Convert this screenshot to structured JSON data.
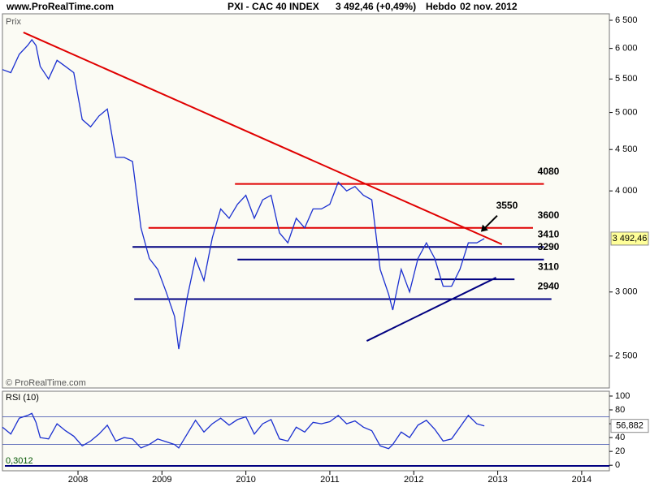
{
  "header": {
    "site": "www.ProRealTime.com",
    "instrument": "PXI - CAC 40 INDEX",
    "quote": "3 492,46 (+0,49%)",
    "period": "Hebdo",
    "date": "02 nov. 2012"
  },
  "chart_data": [
    {
      "type": "line",
      "y_label": "Prix",
      "credit": "© ProRealTime.com",
      "log_scale": true,
      "xlim": [
        2007.1,
        2014.33
      ],
      "xticks": [
        2008,
        2009,
        2010,
        2011,
        2012,
        2013,
        2014
      ],
      "ylim": [
        2283,
        6621
      ],
      "yticks": [
        {
          "value": 2500,
          "label": "2 500"
        },
        {
          "value": 3000,
          "label": "3 000"
        },
        {
          "value": 4000,
          "label": "4 000"
        },
        {
          "value": 4500,
          "label": "4 500"
        },
        {
          "value": 5000,
          "label": "5 000"
        },
        {
          "value": 5500,
          "label": "5 500"
        },
        {
          "value": 6000,
          "label": "6 000"
        },
        {
          "value": 6500,
          "label": "6 500"
        }
      ],
      "x": [
        2007.1,
        2007.2,
        2007.3,
        2007.4,
        2007.45,
        2007.5,
        2007.55,
        2007.65,
        2007.75,
        2007.85,
        2007.95,
        2008.05,
        2008.15,
        2008.25,
        2008.35,
        2008.45,
        2008.55,
        2008.65,
        2008.75,
        2008.85,
        2008.95,
        2009.05,
        2009.15,
        2009.2,
        2009.3,
        2009.4,
        2009.5,
        2009.6,
        2009.7,
        2009.8,
        2009.9,
        2010.0,
        2010.1,
        2010.2,
        2010.3,
        2010.4,
        2010.5,
        2010.6,
        2010.7,
        2010.8,
        2010.9,
        2011.0,
        2011.1,
        2011.2,
        2011.3,
        2011.4,
        2011.5,
        2011.6,
        2011.7,
        2011.75,
        2011.85,
        2011.95,
        2012.05,
        2012.15,
        2012.25,
        2012.35,
        2012.45,
        2012.55,
        2012.65,
        2012.75,
        2012.84
      ],
      "series": [
        {
          "name": "CAC 40",
          "color": "#1a2fd0",
          "values": [
            5650,
            5600,
            5900,
            6050,
            6150,
            6050,
            5700,
            5500,
            5800,
            5700,
            5600,
            4900,
            4800,
            4950,
            5050,
            4400,
            4400,
            4350,
            3600,
            3300,
            3200,
            3000,
            2800,
            2550,
            2950,
            3300,
            3100,
            3500,
            3800,
            3700,
            3850,
            3950,
            3700,
            3900,
            3950,
            3550,
            3450,
            3700,
            3600,
            3800,
            3800,
            3850,
            4100,
            4000,
            4050,
            3950,
            3900,
            3200,
            2980,
            2850,
            3200,
            3000,
            3300,
            3450,
            3300,
            3050,
            3050,
            3200,
            3450,
            3450,
            3492.46
          ]
        }
      ],
      "last_label": "3 492,46",
      "levels": [
        {
          "value": 4080,
          "color": "#e00000",
          "x": [
            2009.87,
            2013.55
          ]
        },
        {
          "value": 3600,
          "color": "#e00000",
          "x": [
            2008.84,
            2013.42
          ]
        },
        {
          "value": 3410,
          "color": "#000080",
          "x": [
            2008.65,
            2013.55
          ]
        },
        {
          "value": 3290,
          "color": "#000080",
          "x": [
            2009.9,
            2013.55
          ]
        },
        {
          "value": 3110,
          "color": "#000080",
          "x": [
            2012.25,
            2013.2
          ]
        },
        {
          "value": 2940,
          "color": "#000080",
          "x": [
            2008.67,
            2013.64
          ]
        }
      ],
      "trendlines": [
        {
          "color": "#e00000",
          "x": [
            2007.35,
            2013.05
          ],
          "y": [
            6279,
            3436
          ]
        },
        {
          "color": "#000080",
          "x": [
            2011.44,
            2012.98
          ],
          "y": [
            2610,
            3125
          ]
        }
      ],
      "annotation": {
        "value": 3550,
        "x": 2012.8,
        "y": 3560
      }
    },
    {
      "type": "line",
      "title": "RSI (10)",
      "footnote": "0,3012",
      "xlim": [
        2007.1,
        2014.33
      ],
      "ylim": [
        -8,
        107
      ],
      "yticks": [
        0,
        20,
        40,
        60,
        80,
        100
      ],
      "bands": [
        30,
        70
      ],
      "x": [
        2007.1,
        2007.2,
        2007.3,
        2007.4,
        2007.45,
        2007.5,
        2007.55,
        2007.65,
        2007.75,
        2007.85,
        2007.95,
        2008.05,
        2008.15,
        2008.25,
        2008.35,
        2008.45,
        2008.55,
        2008.65,
        2008.75,
        2008.85,
        2008.95,
        2009.05,
        2009.15,
        2009.2,
        2009.3,
        2009.4,
        2009.5,
        2009.6,
        2009.7,
        2009.8,
        2009.9,
        2010.0,
        2010.1,
        2010.2,
        2010.3,
        2010.4,
        2010.5,
        2010.6,
        2010.7,
        2010.8,
        2010.9,
        2011.0,
        2011.1,
        2011.2,
        2011.3,
        2011.4,
        2011.5,
        2011.6,
        2011.7,
        2011.75,
        2011.85,
        2011.95,
        2012.05,
        2012.15,
        2012.25,
        2012.35,
        2012.45,
        2012.55,
        2012.65,
        2012.75,
        2012.84
      ],
      "series": [
        {
          "name": "RSI",
          "color": "#1a2fd0",
          "values": [
            55,
            45,
            68,
            72,
            75,
            62,
            40,
            38,
            60,
            50,
            42,
            28,
            35,
            45,
            58,
            35,
            40,
            38,
            25,
            30,
            38,
            34,
            30,
            25,
            45,
            65,
            48,
            60,
            68,
            58,
            66,
            70,
            45,
            60,
            66,
            38,
            35,
            55,
            48,
            62,
            60,
            63,
            72,
            60,
            64,
            55,
            50,
            28,
            24,
            30,
            48,
            40,
            58,
            65,
            52,
            35,
            38,
            55,
            72,
            60,
            56.882
          ]
        }
      ],
      "last_label": "56,882"
    }
  ]
}
